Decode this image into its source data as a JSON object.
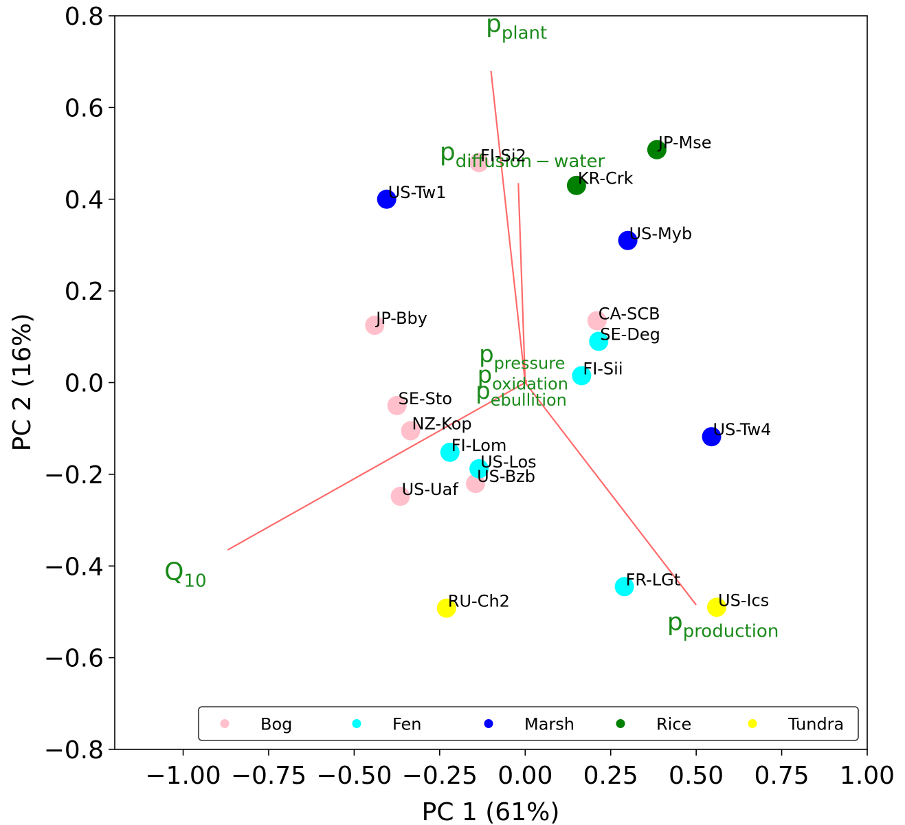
{
  "chart_data": {
    "type": "scatter",
    "title": "",
    "xlabel": "PC 1 (61%)",
    "ylabel": "PC 2 (16%)",
    "xlim": [
      -1.2,
      1.0
    ],
    "ylim": [
      -0.8,
      0.8
    ],
    "grid": false,
    "xticks": [
      -1.0,
      -0.75,
      -0.5,
      -0.25,
      0.0,
      0.25,
      0.5,
      0.75,
      1.0
    ],
    "xtick_labels": [
      "−1.00",
      "−0.75",
      "−0.50",
      "−0.25",
      "0.00",
      "0.25",
      "0.50",
      "0.75",
      "1.00"
    ],
    "yticks": [
      0.8,
      0.6,
      0.4,
      0.2,
      0.0,
      -0.2,
      -0.4,
      -0.6,
      -0.8
    ],
    "ytick_labels": [
      "0.8",
      "0.6",
      "0.4",
      "0.2",
      "0.0",
      "−0.2",
      "−0.4",
      "−0.6",
      "−0.8"
    ],
    "legend_position": "bottom",
    "groups": [
      {
        "name": "Bog",
        "color": "#ffc0cb"
      },
      {
        "name": "Fen",
        "color": "#00ffff"
      },
      {
        "name": "Marsh",
        "color": "#0000ff"
      },
      {
        "name": "Rice",
        "color": "#008000"
      },
      {
        "name": "Tundra",
        "color": "#ffff00"
      }
    ],
    "points": [
      {
        "label": "JP-Bby",
        "group": "Bog",
        "x": -0.44,
        "y": 0.125
      },
      {
        "label": "FI-Si2",
        "group": "Bog",
        "x": -0.135,
        "y": 0.48
      },
      {
        "label": "CA-SCB",
        "group": "Bog",
        "x": 0.21,
        "y": 0.135
      },
      {
        "label": "SE-Sto",
        "group": "Bog",
        "x": -0.375,
        "y": -0.05
      },
      {
        "label": "NZ-Kop",
        "group": "Bog",
        "x": -0.335,
        "y": -0.105
      },
      {
        "label": "US-Bzb",
        "group": "Bog",
        "x": -0.145,
        "y": -0.22
      },
      {
        "label": "US-Uaf",
        "group": "Bog",
        "x": -0.365,
        "y": -0.248
      },
      {
        "label": "SE-Deg",
        "group": "Fen",
        "x": 0.215,
        "y": 0.09
      },
      {
        "label": "FI-Sii",
        "group": "Fen",
        "x": 0.165,
        "y": 0.015
      },
      {
        "label": "FI-Lom",
        "group": "Fen",
        "x": -0.22,
        "y": -0.152
      },
      {
        "label": "US-Los",
        "group": "Fen",
        "x": -0.135,
        "y": -0.188
      },
      {
        "label": "FR-LGt",
        "group": "Fen",
        "x": 0.29,
        "y": -0.445
      },
      {
        "label": "US-Tw1",
        "group": "Marsh",
        "x": -0.405,
        "y": 0.4
      },
      {
        "label": "US-Myb",
        "group": "Marsh",
        "x": 0.3,
        "y": 0.31
      },
      {
        "label": "US-Tw4",
        "group": "Marsh",
        "x": 0.545,
        "y": -0.118
      },
      {
        "label": "JP-Mse",
        "group": "Rice",
        "x": 0.385,
        "y": 0.508
      },
      {
        "label": "KR-Crk",
        "group": "Rice",
        "x": 0.15,
        "y": 0.43
      },
      {
        "label": "RU-Ch2",
        "group": "Tundra",
        "x": -0.23,
        "y": -0.492
      },
      {
        "label": "US-Ics",
        "group": "Tundra",
        "x": 0.56,
        "y": -0.49
      }
    ],
    "vectors": [
      {
        "base": "p",
        "sub": "plant",
        "x": -0.1,
        "y": 0.68,
        "label_x": -0.115,
        "label_y": 0.765,
        "size": 36
      },
      {
        "base": "p",
        "sub": "diffusion − water",
        "x": -0.02,
        "y": 0.435,
        "label_x": -0.25,
        "label_y": 0.485,
        "size": 36
      },
      {
        "base": "Q",
        "sub": "10",
        "x": -0.87,
        "y": -0.365,
        "label_x": -1.055,
        "label_y": -0.43,
        "size": 36
      },
      {
        "base": "p",
        "sub": "production",
        "x": 0.5,
        "y": -0.485,
        "label_x": 0.415,
        "label_y": -0.54,
        "size": 36
      },
      {
        "base": "p",
        "sub": "pressure",
        "x": 0.005,
        "y": 0.005,
        "label_x": -0.135,
        "label_y": 0.045,
        "size": 34
      },
      {
        "base": "p",
        "sub": "oxidation",
        "x": 0.005,
        "y": 0.0,
        "label_x": -0.14,
        "label_y": 0.0,
        "size": 34
      },
      {
        "base": "p",
        "sub": "ebullition",
        "x": 0.005,
        "y": -0.005,
        "label_x": -0.145,
        "label_y": -0.035,
        "size": 34
      }
    ],
    "vector_color": "#ff6b6b",
    "vector_label_color": "#1a8a1a"
  }
}
